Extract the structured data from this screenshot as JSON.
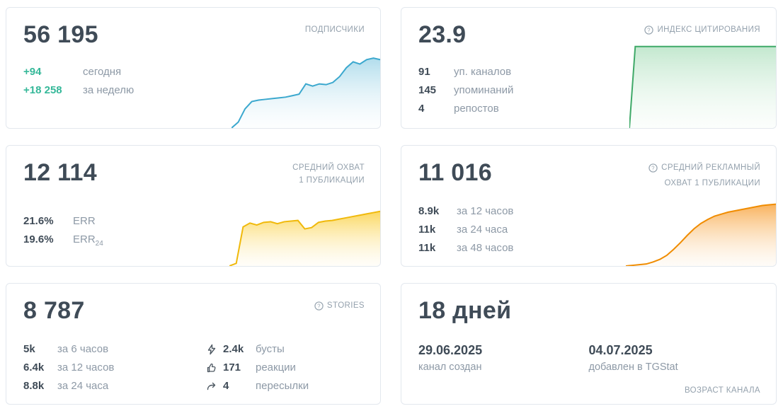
{
  "colors": {
    "value_dark": "#3f4b57",
    "label_gray": "#8d99a6",
    "title_gray": "#94a1ad",
    "green_accent": "#35b899",
    "card_border": "#e3e8ee"
  },
  "icons": {
    "help": "question-circle-icon",
    "boosts": "bolt-icon",
    "reactions": "thumbs-up-icon",
    "forwards": "forward-arrow-icon"
  },
  "cards": {
    "subscribers": {
      "title": "ПОДПИСЧИКИ",
      "value": "56 195",
      "rows": [
        {
          "value": "+94",
          "label": "сегодня"
        },
        {
          "value": "+18 258",
          "label": "за неделю"
        }
      ]
    },
    "citation_index": {
      "title": "ИНДЕКС ЦИТИРОВАНИЯ",
      "value": "23.9",
      "rows": [
        {
          "value": "91",
          "label": "уп. каналов"
        },
        {
          "value": "145",
          "label": "упоминаний"
        },
        {
          "value": "4",
          "label": "репостов"
        }
      ]
    },
    "avg_reach": {
      "title_line1": "СРЕДНИЙ ОХВАТ",
      "title_line2": "1 ПУБЛИКАЦИИ",
      "value": "12 114",
      "rows": [
        {
          "value": "21.6%",
          "label": "ERR"
        },
        {
          "value": "19.6%",
          "label": "ERR",
          "sub": "24"
        }
      ]
    },
    "avg_ad_reach": {
      "title_line1": "СРЕДНИЙ РЕКЛАМНЫЙ",
      "title_line2": "ОХВАТ 1 ПУБЛИКАЦИИ",
      "value": "11 016",
      "rows": [
        {
          "value": "8.9k",
          "label": "за 12 часов"
        },
        {
          "value": "11k",
          "label": "за 24 часа"
        },
        {
          "value": "11k",
          "label": "за 48 часов"
        }
      ]
    },
    "stories": {
      "title": "STORIES",
      "value": "8 787",
      "left_rows": [
        {
          "value": "5k",
          "label": "за 6 часов"
        },
        {
          "value": "6.4k",
          "label": "за 12 часов"
        },
        {
          "value": "8.8k",
          "label": "за 24 часа"
        }
      ],
      "right_rows": [
        {
          "icon": "bolt-icon",
          "value": "2.4k",
          "label": "бусты"
        },
        {
          "icon": "thumbs-up-icon",
          "value": "171",
          "label": "реакции"
        },
        {
          "icon": "forward-arrow-icon",
          "value": "4",
          "label": "пересылки"
        }
      ]
    },
    "channel_age": {
      "title": "ВОЗРАСТ КАНАЛА",
      "value": "18 дней",
      "cols": [
        {
          "value": "29.06.2025",
          "label": "канал создан"
        },
        {
          "value": "04.07.2025",
          "label": "добавлен в TGStat"
        }
      ]
    }
  },
  "chart_data": [
    {
      "name": "subscribers",
      "type": "area",
      "points": [
        0,
        8,
        26,
        36,
        38,
        39,
        40,
        41,
        42,
        44,
        46,
        60,
        57,
        60,
        59,
        62,
        70,
        82,
        90,
        87,
        93,
        95,
        93
      ],
      "stroke": "#3ba8ce",
      "fill_top": "#a8d9ea",
      "fill_bottom": "#f3fafd"
    },
    {
      "name": "citation",
      "type": "area",
      "points": [
        0,
        96,
        96,
        96,
        96,
        96,
        96,
        96,
        96,
        96,
        96,
        96,
        96,
        96,
        96,
        96,
        96,
        96,
        96,
        96,
        96,
        96,
        96,
        96,
        96,
        96
      ],
      "stroke": "#3fa968",
      "fill_top": "#bce5c9",
      "fill_bottom": "#eef9f1"
    },
    {
      "name": "avg_reach",
      "type": "area",
      "points": [
        0,
        4,
        60,
        66,
        63,
        67,
        68,
        65,
        68,
        69,
        70,
        57,
        59,
        67,
        69,
        70,
        72,
        74,
        76,
        78,
        80,
        82,
        84
      ],
      "stroke": "#f0b90b",
      "fill_top": "#fbd34d",
      "fill_bottom": "#fef7df"
    },
    {
      "name": "ad_reach",
      "type": "area",
      "points": [
        0,
        1,
        2,
        3,
        6,
        10,
        16,
        25,
        35,
        46,
        56,
        64,
        70,
        75,
        78,
        81,
        83,
        85,
        87,
        89,
        91,
        92,
        93
      ],
      "stroke": "#f08c00",
      "fill_top": "#f8a94a",
      "fill_bottom": "#fdeeda"
    }
  ]
}
